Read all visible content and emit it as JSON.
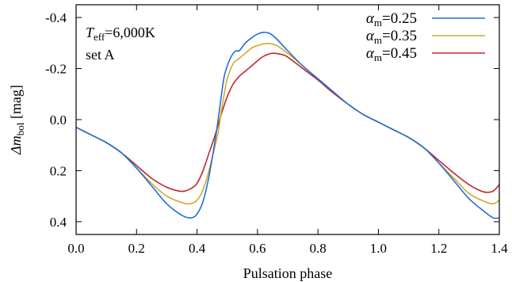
{
  "chart_data": {
    "type": "line",
    "title": "",
    "xlabel": "Pulsation phase",
    "ylabel_main": "Δm",
    "ylabel_sub": "bol",
    "ylabel_unit": " [mag]",
    "xlim": [
      0.0,
      1.4
    ],
    "ylim": [
      0.45,
      -0.45
    ],
    "y_inverted": true,
    "grid": false,
    "legend_placement": "top-right",
    "x_ticks": [
      "0.0",
      "0.2",
      "0.4",
      "0.6",
      "0.8",
      "1.0",
      "1.2",
      "1.4"
    ],
    "y_ticks": [
      "-0.4",
      "-0.2",
      "0.0",
      "0.2",
      "0.4"
    ],
    "annotations": {
      "teff_symbol": "T",
      "teff_sub": "eff",
      "teff_value": "=6,000K",
      "set_label": "set A"
    },
    "series": [
      {
        "name_symbol": "α",
        "name_sub": "m",
        "name_value": "=0.25",
        "color": "#1f6fd6",
        "x": [
          0.0,
          0.05,
          0.1,
          0.15,
          0.2,
          0.25,
          0.3,
          0.35,
          0.38,
          0.4,
          0.42,
          0.44,
          0.46,
          0.47,
          0.48,
          0.49,
          0.5,
          0.51,
          0.52,
          0.53,
          0.54,
          0.56,
          0.58,
          0.6,
          0.62,
          0.64,
          0.66,
          0.7,
          0.75,
          0.8,
          0.85,
          0.9,
          0.95,
          1.0,
          1.05,
          1.1,
          1.15,
          1.2,
          1.25,
          1.3,
          1.35,
          1.38,
          1.4
        ],
        "y": [
          0.03,
          0.06,
          0.09,
          0.13,
          0.19,
          0.26,
          0.33,
          0.375,
          0.385,
          0.37,
          0.32,
          0.22,
          0.08,
          0.0,
          -0.09,
          -0.17,
          -0.21,
          -0.24,
          -0.26,
          -0.27,
          -0.27,
          -0.3,
          -0.32,
          -0.335,
          -0.342,
          -0.338,
          -0.32,
          -0.27,
          -0.21,
          -0.16,
          -0.11,
          -0.06,
          -0.02,
          0.01,
          0.04,
          0.07,
          0.11,
          0.17,
          0.24,
          0.31,
          0.36,
          0.385,
          0.385
        ]
      },
      {
        "name_symbol": "α",
        "name_sub": "m",
        "name_value": "=0.35",
        "color": "#d4a82a",
        "x": [
          0.0,
          0.05,
          0.1,
          0.15,
          0.2,
          0.25,
          0.3,
          0.35,
          0.37,
          0.39,
          0.41,
          0.43,
          0.45,
          0.47,
          0.48,
          0.49,
          0.5,
          0.52,
          0.54,
          0.56,
          0.58,
          0.6,
          0.63,
          0.66,
          0.7,
          0.75,
          0.8,
          0.85,
          0.9,
          0.95,
          1.0,
          1.05,
          1.1,
          1.15,
          1.2,
          1.25,
          1.3,
          1.35,
          1.38,
          1.4
        ],
        "y": [
          0.03,
          0.06,
          0.09,
          0.13,
          0.19,
          0.25,
          0.3,
          0.325,
          0.33,
          0.325,
          0.3,
          0.24,
          0.15,
          0.05,
          -0.03,
          -0.1,
          -0.16,
          -0.22,
          -0.24,
          -0.26,
          -0.28,
          -0.29,
          -0.298,
          -0.292,
          -0.26,
          -0.21,
          -0.16,
          -0.11,
          -0.06,
          -0.02,
          0.01,
          0.04,
          0.07,
          0.11,
          0.17,
          0.23,
          0.29,
          0.32,
          0.33,
          0.315
        ]
      },
      {
        "name_symbol": "α",
        "name_sub": "m",
        "name_value": "=0.45",
        "color": "#c0262d",
        "x": [
          0.0,
          0.05,
          0.1,
          0.15,
          0.2,
          0.25,
          0.3,
          0.34,
          0.36,
          0.38,
          0.4,
          0.42,
          0.44,
          0.46,
          0.48,
          0.5,
          0.52,
          0.54,
          0.56,
          0.58,
          0.6,
          0.62,
          0.65,
          0.68,
          0.7,
          0.75,
          0.8,
          0.85,
          0.9,
          0.95,
          1.0,
          1.05,
          1.1,
          1.15,
          1.2,
          1.25,
          1.3,
          1.34,
          1.36,
          1.38,
          1.4
        ],
        "y": [
          0.03,
          0.06,
          0.09,
          0.13,
          0.18,
          0.23,
          0.265,
          0.28,
          0.28,
          0.27,
          0.25,
          0.2,
          0.13,
          0.06,
          -0.02,
          -0.09,
          -0.14,
          -0.17,
          -0.19,
          -0.21,
          -0.23,
          -0.248,
          -0.26,
          -0.255,
          -0.245,
          -0.2,
          -0.155,
          -0.105,
          -0.06,
          -0.02,
          0.01,
          0.04,
          0.07,
          0.11,
          0.16,
          0.21,
          0.255,
          0.28,
          0.285,
          0.28,
          0.255
        ]
      }
    ]
  }
}
